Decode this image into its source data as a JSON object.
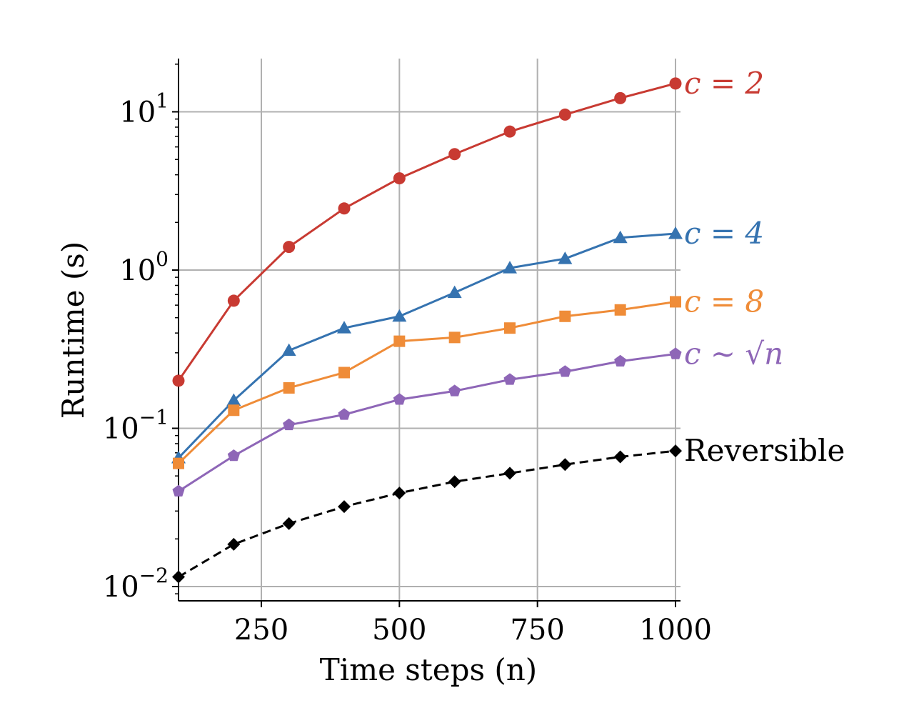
{
  "chart_data": {
    "type": "line",
    "xlabel": "Time steps (n)",
    "ylabel": "Runtime (s)",
    "xlim": [
      100,
      1000
    ],
    "ylim": [
      0.0083,
      21
    ],
    "yscale": "log",
    "grid": true,
    "x_ticks": [
      250,
      500,
      750,
      1000
    ],
    "x_tick_labels": [
      "250",
      "500",
      "750",
      "1000"
    ],
    "y_ticks": [
      {
        "value": 0.01,
        "base": "10",
        "exp": "−2"
      },
      {
        "value": 0.1,
        "base": "10",
        "exp": "−1"
      },
      {
        "value": 1,
        "base": "10",
        "exp": "0"
      },
      {
        "value": 10,
        "base": "10",
        "exp": "1"
      }
    ],
    "x": [
      100,
      200,
      300,
      400,
      500,
      600,
      700,
      800,
      900,
      1000
    ],
    "series": [
      {
        "name": "c = 2",
        "color": "#c83a32",
        "marker": "circle",
        "dash": false,
        "values": [
          0.2,
          0.64,
          1.4,
          2.45,
          3.8,
          5.4,
          7.5,
          9.6,
          12.2,
          15.1
        ]
      },
      {
        "name": "c = 4",
        "color": "#3573b0",
        "marker": "triangle",
        "dash": false,
        "values": [
          0.065,
          0.15,
          0.31,
          0.43,
          0.51,
          0.72,
          1.03,
          1.18,
          1.6,
          1.7
        ]
      },
      {
        "name": "c = 8",
        "color": "#ef8c38",
        "marker": "square",
        "dash": false,
        "values": [
          0.06,
          0.13,
          0.18,
          0.225,
          0.355,
          0.375,
          0.43,
          0.51,
          0.56,
          0.63
        ]
      },
      {
        "name": "c ∼ √n",
        "color": "#8e66b7",
        "marker": "pentagon",
        "dash": false,
        "values": [
          0.04,
          0.067,
          0.105,
          0.122,
          0.152,
          0.172,
          0.203,
          0.228,
          0.265,
          0.295
        ]
      },
      {
        "name": "Reversible",
        "color": "#000000",
        "marker": "diamond",
        "dash": true,
        "values": [
          0.0115,
          0.0185,
          0.025,
          0.032,
          0.039,
          0.046,
          0.052,
          0.059,
          0.066,
          0.072
        ]
      }
    ]
  }
}
